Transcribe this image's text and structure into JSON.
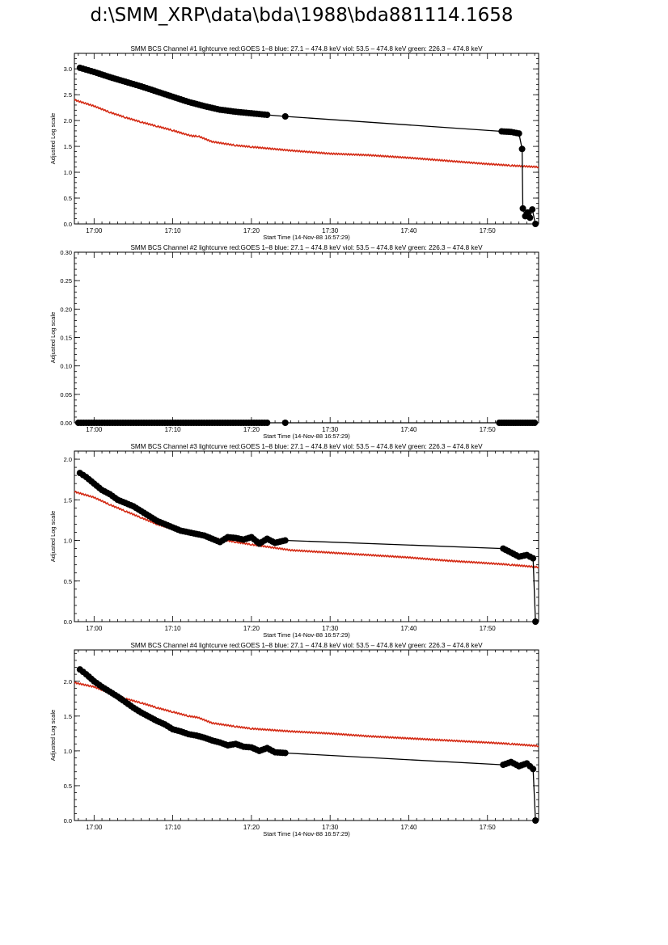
{
  "page": {
    "title": "d:\\SMM_XRP\\data\\bda\\1988\\bda881114.1658"
  },
  "colors": {
    "goes": "#d42a14",
    "bcs": "#000000",
    "axis": "#000000"
  },
  "chart_data": [
    {
      "type": "line",
      "title": "SMM BCS Channel #1 lightcurve  red:GOES 1–8  blue: 27.1 – 474.8 keV  viol: 53.5 – 474.8 keV  green: 226.3 – 474.8 keV",
      "xlabel": "Start Time (14-Nov-88 16:57:29)",
      "ylabel": "Adjusted Log scale",
      "x_tick_labels": [
        "17:00",
        "17:10",
        "17:20",
        "17:30",
        "17:40",
        "17:50"
      ],
      "x_ticks_minutes": [
        0,
        10,
        20,
        30,
        40,
        50
      ],
      "xlim": [
        -2.5,
        56.5
      ],
      "ylim": [
        0,
        3.3
      ],
      "y_ticks": [
        0.0,
        0.5,
        1.0,
        1.5,
        2.0,
        2.5,
        3.0
      ],
      "y_tick_labels": [
        "0.0",
        "0.5",
        "1.0",
        "1.5",
        "2.0",
        "2.5",
        "3.0"
      ],
      "series": [
        {
          "name": "GOES 1–8",
          "style": "line",
          "color": "#d42a14",
          "x": [
            -2.5,
            0,
            2,
            4,
            6,
            8,
            10,
            11.5,
            12.5,
            13.2,
            15,
            18,
            20,
            25,
            30,
            35,
            40,
            45,
            50,
            53,
            56.5
          ],
          "y": [
            2.4,
            2.28,
            2.16,
            2.06,
            1.97,
            1.89,
            1.81,
            1.74,
            1.7,
            1.7,
            1.59,
            1.52,
            1.49,
            1.42,
            1.36,
            1.33,
            1.28,
            1.22,
            1.16,
            1.13,
            1.1
          ]
        },
        {
          "name": "BCS Channel #1",
          "style": "points",
          "color": "#000000",
          "x": [
            -1.8,
            0,
            2,
            4,
            6,
            8,
            10,
            12,
            14,
            16,
            18,
            20,
            22,
            24.3,
            51.8,
            53,
            54,
            54.4,
            54.5,
            54.8,
            55.1,
            55.4,
            55.7,
            56.1
          ],
          "y": [
            3.02,
            2.94,
            2.84,
            2.75,
            2.66,
            2.56,
            2.46,
            2.36,
            2.28,
            2.21,
            2.17,
            2.14,
            2.11,
            2.08,
            1.79,
            1.78,
            1.75,
            1.45,
            0.3,
            0.15,
            0.22,
            0.12,
            0.28,
            0.0
          ]
        }
      ]
    },
    {
      "type": "line",
      "title": "SMM BCS Channel #2 lightcurve  red:GOES 1–8  blue: 27.1 – 474.8 keV  viol: 53.5 – 474.8 keV  green: 226.3 – 474.8 keV",
      "xlabel": "Start Time (14-Nov-88 16:57:29)",
      "ylabel": "Adjusted Log scale",
      "x_tick_labels": [
        "17:00",
        "17:10",
        "17:20",
        "17:30",
        "17:40",
        "17:50"
      ],
      "x_ticks_minutes": [
        0,
        10,
        20,
        30,
        40,
        50
      ],
      "xlim": [
        -2.5,
        56.5
      ],
      "ylim": [
        0,
        0.3
      ],
      "y_ticks": [
        0.0,
        0.05,
        0.1,
        0.15,
        0.2,
        0.25,
        0.3
      ],
      "y_tick_labels": [
        "0.00",
        "0.05",
        "0.10",
        "0.15",
        "0.20",
        "0.25",
        "0.30"
      ],
      "series": [
        {
          "name": "BCS Channel #2",
          "style": "points",
          "color": "#000000",
          "x": [
            -2,
            0,
            2,
            4,
            6,
            8,
            10,
            12,
            14,
            16,
            18,
            20,
            22,
            24.3,
            51.5,
            53,
            54.5,
            56
          ],
          "y": [
            0,
            0,
            0,
            0,
            0,
            0,
            0,
            0,
            0,
            0,
            0,
            0,
            0,
            0,
            0,
            0,
            0,
            0
          ]
        }
      ]
    },
    {
      "type": "line",
      "title": "SMM BCS Channel #3 lightcurve  red:GOES 1–8  blue: 27.1 – 474.8 keV  viol: 53.5 – 474.8 keV  green: 226.3 – 474.8 keV",
      "xlabel": "Start Time (14-Nov-88 16:57:29)",
      "ylabel": "Adjusted Log scale",
      "x_tick_labels": [
        "17:00",
        "17:10",
        "17:20",
        "17:30",
        "17:40",
        "17:50"
      ],
      "x_ticks_minutes": [
        0,
        10,
        20,
        30,
        40,
        50
      ],
      "xlim": [
        -2.5,
        56.5
      ],
      "ylim": [
        0,
        2.1
      ],
      "y_ticks": [
        0.0,
        0.5,
        1.0,
        1.5,
        2.0
      ],
      "y_tick_labels": [
        "0.0",
        "0.5",
        "1.0",
        "1.5",
        "2.0"
      ],
      "series": [
        {
          "name": "GOES 1–8",
          "style": "line",
          "color": "#d42a14",
          "x": [
            -2.5,
            0,
            2,
            4,
            6,
            8,
            10,
            12,
            13.5,
            15,
            18,
            20,
            25,
            30,
            35,
            40,
            45,
            50,
            53,
            56.5
          ],
          "y": [
            1.6,
            1.53,
            1.44,
            1.36,
            1.28,
            1.2,
            1.14,
            1.09,
            1.08,
            1.03,
            0.98,
            0.95,
            0.88,
            0.85,
            0.82,
            0.79,
            0.75,
            0.72,
            0.7,
            0.67
          ]
        },
        {
          "name": "BCS Channel #3",
          "style": "points",
          "color": "#000000",
          "x": [
            -1.8,
            -1,
            0,
            1,
            2,
            3,
            4,
            5,
            6,
            7,
            8,
            9,
            10,
            11,
            12,
            13,
            14,
            15,
            16,
            17,
            18,
            19,
            20,
            21,
            22,
            23,
            24.3,
            52,
            53,
            54,
            55,
            55.8,
            56.1
          ],
          "y": [
            1.83,
            1.78,
            1.7,
            1.62,
            1.57,
            1.5,
            1.46,
            1.42,
            1.36,
            1.3,
            1.24,
            1.2,
            1.16,
            1.12,
            1.1,
            1.08,
            1.06,
            1.02,
            0.98,
            1.04,
            1.03,
            1.01,
            1.04,
            0.96,
            1.02,
            0.97,
            1.0,
            0.9,
            0.85,
            0.8,
            0.82,
            0.78,
            0.0
          ]
        }
      ]
    },
    {
      "type": "line",
      "title": "SMM BCS Channel #4 lightcurve  red:GOES 1–8  blue: 27.1 – 474.8 keV  viol: 53.5 – 474.8 keV  green: 226.3 – 474.8 keV",
      "xlabel": "Start Time (14-Nov-88 16:57:29)",
      "ylabel": "Adjusted Log scale",
      "x_tick_labels": [
        "17:00",
        "17:10",
        "17:20",
        "17:30",
        "17:40",
        "17:50"
      ],
      "x_ticks_minutes": [
        0,
        10,
        20,
        30,
        40,
        50
      ],
      "xlim": [
        -2.5,
        56.5
      ],
      "ylim": [
        0,
        2.45
      ],
      "y_ticks": [
        0.0,
        0.5,
        1.0,
        1.5,
        2.0
      ],
      "y_tick_labels": [
        "0.0",
        "0.5",
        "1.0",
        "1.5",
        "2.0"
      ],
      "series": [
        {
          "name": "GOES 1–8",
          "style": "line",
          "color": "#d42a14",
          "x": [
            -2.5,
            0,
            2,
            4,
            6,
            8,
            10,
            12,
            13.2,
            15,
            18,
            20,
            25,
            30,
            35,
            40,
            45,
            50,
            53,
            56.5
          ],
          "y": [
            1.98,
            1.92,
            1.83,
            1.75,
            1.69,
            1.62,
            1.56,
            1.5,
            1.48,
            1.4,
            1.35,
            1.32,
            1.28,
            1.25,
            1.21,
            1.18,
            1.15,
            1.12,
            1.1,
            1.07
          ]
        },
        {
          "name": "BCS Channel #4",
          "style": "points",
          "color": "#000000",
          "x": [
            -1.8,
            -1,
            0,
            1,
            2,
            3,
            4,
            5,
            6,
            7,
            8,
            9,
            10,
            11,
            12,
            13,
            14,
            15,
            16,
            17,
            18,
            19,
            20,
            21,
            22,
            23,
            24.3,
            52,
            53,
            54,
            55,
            55.8,
            56.1
          ],
          "y": [
            2.17,
            2.1,
            2.0,
            1.92,
            1.85,
            1.78,
            1.7,
            1.62,
            1.55,
            1.49,
            1.43,
            1.38,
            1.31,
            1.28,
            1.24,
            1.22,
            1.19,
            1.15,
            1.12,
            1.08,
            1.1,
            1.06,
            1.05,
            1.0,
            1.04,
            0.98,
            0.97,
            0.8,
            0.84,
            0.78,
            0.82,
            0.74,
            0.0
          ]
        }
      ]
    }
  ]
}
